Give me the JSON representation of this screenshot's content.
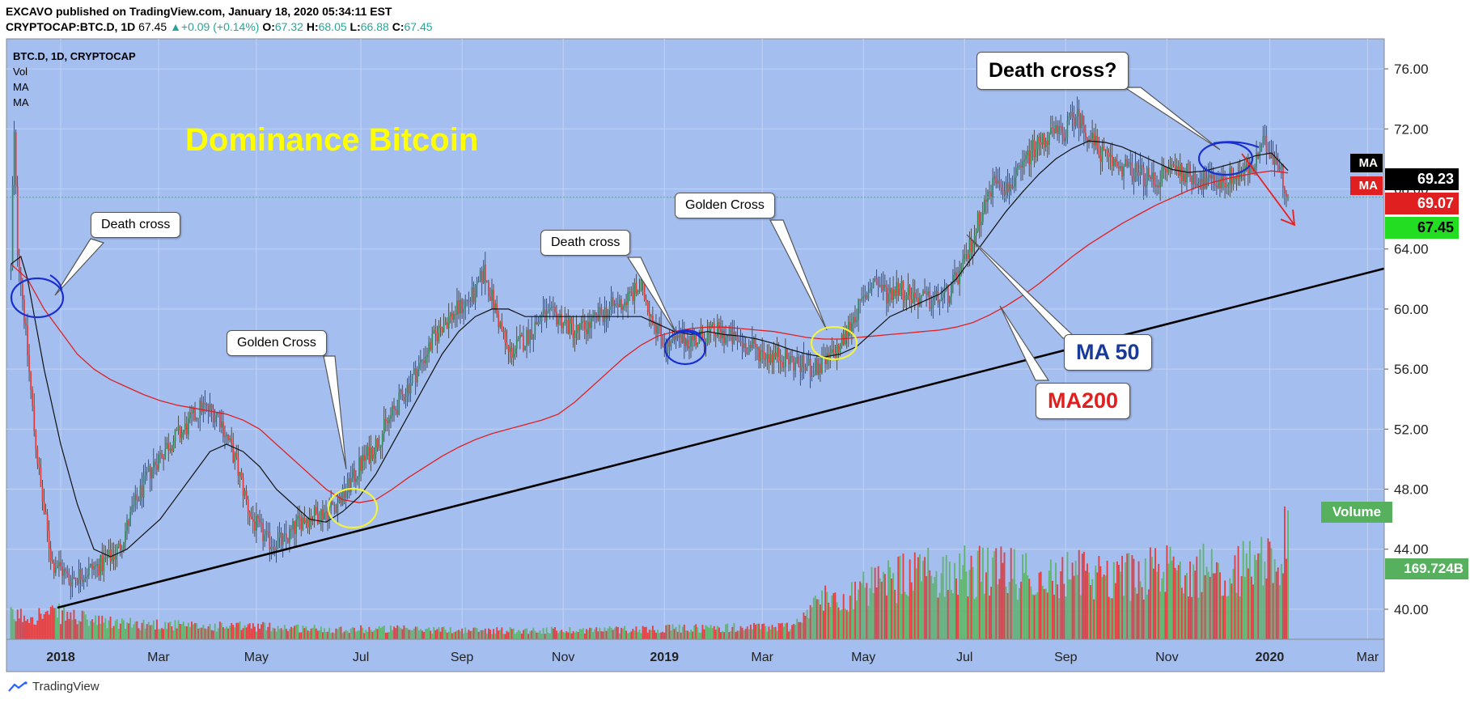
{
  "header": {
    "publisher_line": "EXCAVO published on TradingView.com, January 18, 2020 05:34:11 EST",
    "symbol": "CRYPTOCAP:BTC.D, 1D",
    "last": "67.45",
    "change": "+0.09 (+0.14%)",
    "o_label": "O:",
    "o": "67.32",
    "h_label": "H:",
    "h": "68.05",
    "l_label": "L:",
    "l": "66.88",
    "c_label": "C:",
    "c": "67.45"
  },
  "legend": {
    "symbol": "BTC.D, 1D, CRYPTOCAP",
    "vol": "Vol",
    "ma1": "MA",
    "ma2": "MA"
  },
  "footer": {
    "brand": "TradingView"
  },
  "colors": {
    "background": "#a4bef0",
    "up": "#2e8b57",
    "down": "#e03a3a",
    "ma50": "#111111",
    "ma200": "#e02020",
    "trendline": "#000000",
    "title": "#ffff00"
  },
  "price_labels": {
    "ma_tag_1": "MA",
    "ma_tag_2": "MA",
    "ma50_value": "69.23",
    "ma200_value": "69.07",
    "last_value": "67.45",
    "volume_tag": "Volume",
    "volume_value": "169.724B"
  },
  "annotations": {
    "title": "Dominance Bitcoin",
    "death_cross_1": "Death cross",
    "golden_cross_1": "Golden Cross",
    "death_cross_2": "Death cross",
    "golden_cross_2": "Golden Cross",
    "death_cross_q": "Death cross?",
    "ma50": "MA 50",
    "ma200": "MA200"
  },
  "chart_data": {
    "type": "candlestick",
    "title": "Dominance Bitcoin",
    "ylim": [
      38,
      78
    ],
    "y_ticks": [
      "40.00",
      "44.00",
      "48.00",
      "52.00",
      "56.00",
      "60.00",
      "64.00",
      "68.00",
      "72.00",
      "76.00"
    ],
    "x_ticks": [
      "2018",
      "Mar",
      "May",
      "Jul",
      "Sep",
      "Nov",
      "2019",
      "Mar",
      "May",
      "Jul",
      "Sep",
      "Nov",
      "2020",
      "Mar"
    ],
    "x_tick_index": [
      0,
      59,
      118,
      181,
      242,
      303,
      364,
      423,
      484,
      545,
      606,
      667,
      729,
      788
    ],
    "close_path": [
      [
        -30,
        62.5
      ],
      [
        -29,
        68
      ],
      [
        -28,
        71.5
      ],
      [
        -26,
        64
      ],
      [
        -24,
        62
      ],
      [
        -20,
        57
      ],
      [
        -16,
        52
      ],
      [
        -12,
        48
      ],
      [
        -8,
        45
      ],
      [
        -5,
        43
      ],
      [
        -2,
        43
      ],
      [
        5,
        42
      ],
      [
        15,
        42.5
      ],
      [
        25,
        43
      ],
      [
        35,
        44
      ],
      [
        45,
        47
      ],
      [
        55,
        49.5
      ],
      [
        65,
        51
      ],
      [
        75,
        52
      ],
      [
        85,
        53.5
      ],
      [
        95,
        53
      ],
      [
        105,
        50
      ],
      [
        115,
        46
      ],
      [
        125,
        44.5
      ],
      [
        135,
        44.5
      ],
      [
        145,
        46
      ],
      [
        160,
        46.5
      ],
      [
        170,
        47.5
      ],
      [
        180,
        49.5
      ],
      [
        190,
        51
      ],
      [
        200,
        53
      ],
      [
        210,
        55
      ],
      [
        220,
        57
      ],
      [
        230,
        59
      ],
      [
        240,
        60
      ],
      [
        250,
        61
      ],
      [
        255,
        62.5
      ],
      [
        262,
        60
      ],
      [
        270,
        57
      ],
      [
        280,
        58
      ],
      [
        290,
        59.5
      ],
      [
        300,
        59.5
      ],
      [
        310,
        58.5
      ],
      [
        320,
        59
      ],
      [
        330,
        60
      ],
      [
        340,
        60.5
      ],
      [
        350,
        61.5
      ],
      [
        355,
        60
      ],
      [
        365,
        57.5
      ],
      [
        375,
        58
      ],
      [
        385,
        58
      ],
      [
        395,
        58.5
      ],
      [
        405,
        58
      ],
      [
        415,
        57.5
      ],
      [
        425,
        57
      ],
      [
        435,
        56.8
      ],
      [
        445,
        56.3
      ],
      [
        455,
        56
      ],
      [
        462,
        56.5
      ],
      [
        470,
        57.5
      ],
      [
        478,
        59.5
      ],
      [
        484,
        60.5
      ],
      [
        490,
        62
      ],
      [
        498,
        61
      ],
      [
        505,
        61.5
      ],
      [
        515,
        60.8
      ],
      [
        525,
        60.5
      ],
      [
        535,
        61
      ],
      [
        545,
        63
      ],
      [
        555,
        66.5
      ],
      [
        565,
        69
      ],
      [
        570,
        68
      ],
      [
        578,
        69
      ],
      [
        585,
        70.5
      ],
      [
        595,
        71.5
      ],
      [
        605,
        71.8
      ],
      [
        612,
        73
      ],
      [
        620,
        71.5
      ],
      [
        630,
        70
      ],
      [
        640,
        69.5
      ],
      [
        650,
        69
      ],
      [
        660,
        68.5
      ],
      [
        670,
        69.5
      ],
      [
        680,
        69
      ],
      [
        690,
        68.5
      ],
      [
        700,
        68.5
      ],
      [
        710,
        69
      ],
      [
        720,
        69.5
      ],
      [
        725,
        71
      ],
      [
        730,
        70.5
      ],
      [
        735,
        69.5
      ],
      [
        740,
        67.45
      ]
    ],
    "ma50_path": [
      [
        -30,
        63
      ],
      [
        -24,
        63.5
      ],
      [
        -20,
        62
      ],
      [
        -10,
        56
      ],
      [
        0,
        51
      ],
      [
        10,
        47
      ],
      [
        20,
        44
      ],
      [
        30,
        43.5
      ],
      [
        40,
        44
      ],
      [
        50,
        45
      ],
      [
        60,
        46
      ],
      [
        70,
        47.5
      ],
      [
        80,
        49
      ],
      [
        90,
        50.5
      ],
      [
        100,
        51
      ],
      [
        110,
        50.5
      ],
      [
        120,
        49.5
      ],
      [
        130,
        48
      ],
      [
        140,
        47
      ],
      [
        150,
        46
      ],
      [
        160,
        45.8
      ],
      [
        170,
        46.5
      ],
      [
        180,
        47.5
      ],
      [
        190,
        49
      ],
      [
        200,
        51
      ],
      [
        210,
        53
      ],
      [
        220,
        55
      ],
      [
        230,
        57
      ],
      [
        240,
        58.5
      ],
      [
        250,
        59.5
      ],
      [
        260,
        60
      ],
      [
        270,
        60
      ],
      [
        280,
        59.5
      ],
      [
        290,
        59.5
      ],
      [
        300,
        59.5
      ],
      [
        310,
        59.5
      ],
      [
        320,
        59.5
      ],
      [
        330,
        59.5
      ],
      [
        340,
        59.5
      ],
      [
        350,
        59.5
      ],
      [
        360,
        59
      ],
      [
        370,
        58.5
      ],
      [
        380,
        58.3
      ],
      [
        390,
        58.5
      ],
      [
        400,
        58.3
      ],
      [
        410,
        58.2
      ],
      [
        420,
        58
      ],
      [
        430,
        57.7
      ],
      [
        440,
        57.3
      ],
      [
        450,
        57
      ],
      [
        460,
        56.8
      ],
      [
        470,
        57
      ],
      [
        480,
        57.5
      ],
      [
        490,
        58.5
      ],
      [
        500,
        59.5
      ],
      [
        510,
        60
      ],
      [
        520,
        60.5
      ],
      [
        530,
        61
      ],
      [
        540,
        62
      ],
      [
        550,
        63.5
      ],
      [
        560,
        65
      ],
      [
        570,
        66.5
      ],
      [
        580,
        67.8
      ],
      [
        590,
        69
      ],
      [
        600,
        70
      ],
      [
        610,
        70.7
      ],
      [
        620,
        71.2
      ],
      [
        630,
        71.1
      ],
      [
        640,
        70.8
      ],
      [
        650,
        70.3
      ],
      [
        660,
        69.8
      ],
      [
        670,
        69.3
      ],
      [
        680,
        69.1
      ],
      [
        690,
        69.2
      ],
      [
        700,
        69.5
      ],
      [
        710,
        69.8
      ],
      [
        720,
        70.2
      ],
      [
        730,
        70.4
      ],
      [
        740,
        69.23
      ]
    ],
    "ma200_path": [
      [
        -30,
        63
      ],
      [
        -20,
        62
      ],
      [
        -10,
        60
      ],
      [
        0,
        58.5
      ],
      [
        10,
        57
      ],
      [
        20,
        56
      ],
      [
        30,
        55.3
      ],
      [
        40,
        54.8
      ],
      [
        50,
        54.3
      ],
      [
        60,
        53.9
      ],
      [
        70,
        53.6
      ],
      [
        80,
        53.4
      ],
      [
        90,
        53.2
      ],
      [
        100,
        53
      ],
      [
        110,
        52.6
      ],
      [
        120,
        52
      ],
      [
        130,
        51
      ],
      [
        140,
        50
      ],
      [
        150,
        49
      ],
      [
        160,
        48
      ],
      [
        170,
        47.3
      ],
      [
        180,
        47.1
      ],
      [
        190,
        47.3
      ],
      [
        200,
        48
      ],
      [
        210,
        48.8
      ],
      [
        220,
        49.5
      ],
      [
        230,
        50.2
      ],
      [
        240,
        50.8
      ],
      [
        250,
        51.3
      ],
      [
        260,
        51.7
      ],
      [
        270,
        52
      ],
      [
        280,
        52.3
      ],
      [
        290,
        52.6
      ],
      [
        300,
        53
      ],
      [
        310,
        53.8
      ],
      [
        320,
        54.8
      ],
      [
        330,
        55.8
      ],
      [
        340,
        56.8
      ],
      [
        350,
        57.6
      ],
      [
        360,
        58.2
      ],
      [
        370,
        58.5
      ],
      [
        380,
        58.7
      ],
      [
        390,
        58.8
      ],
      [
        400,
        58.8
      ],
      [
        410,
        58.7
      ],
      [
        420,
        58.6
      ],
      [
        430,
        58.5
      ],
      [
        440,
        58.3
      ],
      [
        450,
        58.1
      ],
      [
        460,
        58
      ],
      [
        470,
        58
      ],
      [
        480,
        58.1
      ],
      [
        490,
        58.2
      ],
      [
        500,
        58.3
      ],
      [
        510,
        58.4
      ],
      [
        520,
        58.5
      ],
      [
        530,
        58.6
      ],
      [
        540,
        58.8
      ],
      [
        550,
        59.1
      ],
      [
        560,
        59.6
      ],
      [
        570,
        60.2
      ],
      [
        580,
        60.9
      ],
      [
        590,
        61.7
      ],
      [
        600,
        62.6
      ],
      [
        610,
        63.5
      ],
      [
        620,
        64.3
      ],
      [
        630,
        65
      ],
      [
        640,
        65.7
      ],
      [
        650,
        66.3
      ],
      [
        660,
        66.9
      ],
      [
        670,
        67.4
      ],
      [
        680,
        67.9
      ],
      [
        690,
        68.3
      ],
      [
        700,
        68.6
      ],
      [
        710,
        68.85
      ],
      [
        720,
        69.05
      ],
      [
        730,
        69.2
      ],
      [
        740,
        69.07
      ]
    ],
    "volume_profile": [
      [
        -30,
        0.9
      ],
      [
        0,
        1.0
      ],
      [
        20,
        0.7
      ],
      [
        40,
        0.6
      ],
      [
        60,
        0.6
      ],
      [
        80,
        0.5
      ],
      [
        100,
        0.5
      ],
      [
        120,
        0.5
      ],
      [
        140,
        0.45
      ],
      [
        160,
        0.4
      ],
      [
        200,
        0.4
      ],
      [
        250,
        0.35
      ],
      [
        300,
        0.35
      ],
      [
        350,
        0.4
      ],
      [
        400,
        0.45
      ],
      [
        440,
        0.5
      ],
      [
        460,
        1.6
      ],
      [
        480,
        1.8
      ],
      [
        500,
        2.3
      ],
      [
        520,
        2.6
      ],
      [
        540,
        2.7
      ],
      [
        560,
        2.6
      ],
      [
        580,
        2.6
      ],
      [
        600,
        2.4
      ],
      [
        620,
        2.6
      ],
      [
        640,
        2.5
      ],
      [
        660,
        2.6
      ],
      [
        680,
        2.8
      ],
      [
        700,
        2.6
      ],
      [
        720,
        2.9
      ],
      [
        735,
        3.3
      ],
      [
        740,
        4.0
      ]
    ],
    "trendline": [
      [
        -2,
        40.1
      ],
      [
        1000,
        68.4
      ]
    ],
    "series": [
      {
        "name": "BTC.D",
        "last": 67.45
      },
      {
        "name": "MA 50",
        "last": 69.23
      },
      {
        "name": "MA200",
        "last": 69.07
      }
    ]
  }
}
